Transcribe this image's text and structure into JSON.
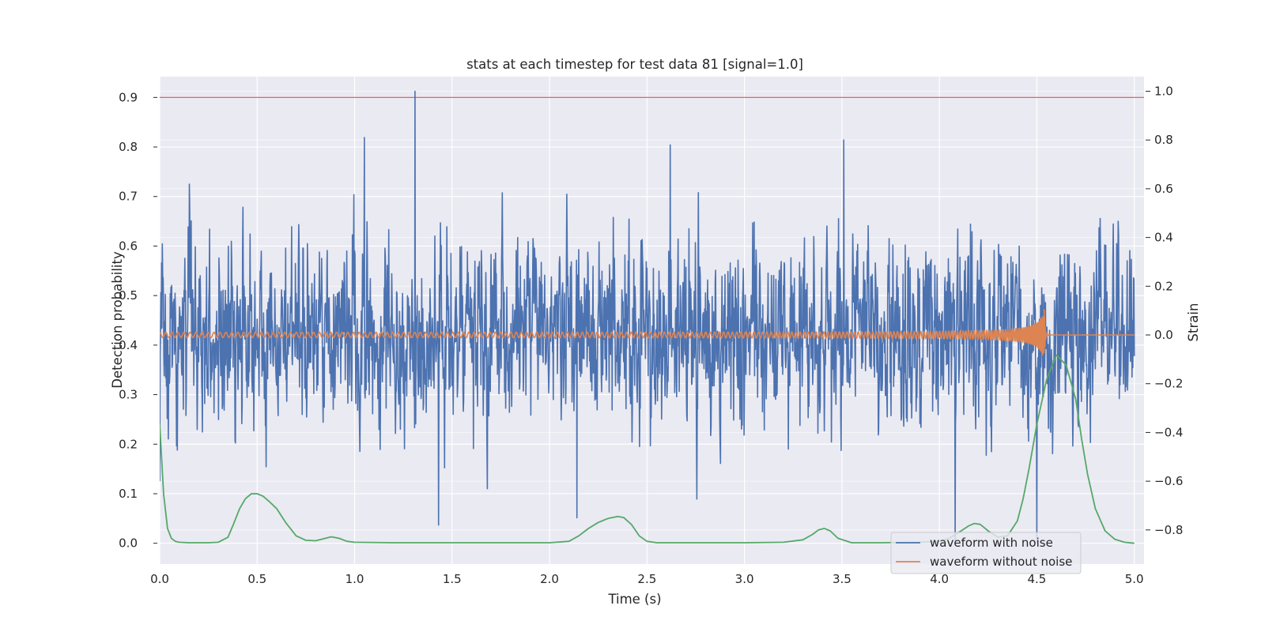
{
  "chart_data": {
    "type": "line",
    "title": "stats at each timestep for test data 81 [signal=1.0]",
    "xlabel": "Time (s)",
    "ylabel_left": "Detection probability",
    "ylabel_right": "Strain",
    "xlim": [
      0.0,
      5.05
    ],
    "ylim_left": [
      -0.042,
      0.942
    ],
    "ylim_right": [
      -0.94,
      1.06
    ],
    "grid": true,
    "x_ticks": [
      "0.0",
      "0.5",
      "1.0",
      "1.5",
      "2.0",
      "2.5",
      "3.0",
      "3.5",
      "4.0",
      "4.5",
      "5.0"
    ],
    "y_ticks_left": [
      "0.0",
      "0.1",
      "0.2",
      "0.3",
      "0.4",
      "0.5",
      "0.6",
      "0.7",
      "0.8",
      "0.9"
    ],
    "y_ticks_right": [
      "−0.8",
      "−0.6",
      "−0.4",
      "−0.2",
      "0.0",
      "0.2",
      "0.4",
      "0.6",
      "0.8",
      "1.0"
    ],
    "threshold": {
      "axis": "left",
      "y": 0.9,
      "color": "#d62728"
    },
    "series": [
      {
        "name": "waveform with noise",
        "axis": "right",
        "color": "#4c72b0",
        "kind": "noise",
        "x_range": [
          0.0,
          5.0
        ],
        "y_range_approx": [
          -0.85,
          1.0
        ],
        "spikes": [
          [
            0.0,
            -0.6
          ],
          [
            1.31,
            1.0
          ],
          [
            1.05,
            0.81
          ],
          [
            3.51,
            0.8
          ],
          [
            4.08,
            -0.85
          ],
          [
            4.5,
            -0.85
          ],
          [
            2.62,
            0.78
          ],
          [
            2.14,
            -0.75
          ],
          [
            1.43,
            -0.78
          ]
        ]
      },
      {
        "name": "waveform without noise",
        "axis": "right",
        "color": "#dd8452",
        "kind": "chirp",
        "x_range": [
          0.0,
          5.0
        ],
        "merger_time": 4.54,
        "amplitude_start": 0.01,
        "amplitude_peak": 0.12
      },
      {
        "axis": "left",
        "color": "#55a868",
        "kind": "probability",
        "x": [
          0.0,
          0.02,
          0.04,
          0.06,
          0.08,
          0.1,
          0.15,
          0.2,
          0.25,
          0.3,
          0.35,
          0.38,
          0.41,
          0.44,
          0.47,
          0.5,
          0.53,
          0.56,
          0.6,
          0.65,
          0.7,
          0.75,
          0.8,
          0.85,
          0.88,
          0.92,
          0.96,
          1.0,
          1.2,
          1.5,
          1.8,
          2.0,
          2.1,
          2.15,
          2.2,
          2.25,
          2.3,
          2.35,
          2.38,
          2.42,
          2.46,
          2.5,
          2.55,
          2.7,
          3.0,
          3.2,
          3.3,
          3.35,
          3.38,
          3.41,
          3.44,
          3.48,
          3.55,
          3.7,
          3.9,
          4.0,
          4.05,
          4.1,
          4.15,
          4.18,
          4.21,
          4.25,
          4.3,
          4.35,
          4.4,
          4.43,
          4.46,
          4.5,
          4.55,
          4.6,
          4.65,
          4.7,
          4.73,
          4.76,
          4.8,
          4.85,
          4.9,
          4.95,
          5.0
        ],
        "y": [
          0.24,
          0.1,
          0.03,
          0.01,
          0.004,
          0.002,
          0.001,
          0.001,
          0.001,
          0.002,
          0.012,
          0.04,
          0.07,
          0.09,
          0.1,
          0.1,
          0.095,
          0.085,
          0.07,
          0.04,
          0.015,
          0.006,
          0.005,
          0.01,
          0.013,
          0.01,
          0.004,
          0.002,
          0.001,
          0.001,
          0.001,
          0.001,
          0.004,
          0.015,
          0.03,
          0.042,
          0.05,
          0.054,
          0.052,
          0.038,
          0.015,
          0.004,
          0.001,
          0.001,
          0.001,
          0.002,
          0.007,
          0.018,
          0.027,
          0.03,
          0.025,
          0.01,
          0.001,
          0.001,
          0.002,
          0.004,
          0.01,
          0.022,
          0.035,
          0.04,
          0.038,
          0.025,
          0.012,
          0.015,
          0.045,
          0.09,
          0.15,
          0.24,
          0.33,
          0.38,
          0.36,
          0.29,
          0.21,
          0.14,
          0.07,
          0.025,
          0.008,
          0.002,
          0.0
        ]
      }
    ],
    "legend": {
      "position": "lower right",
      "entries": [
        "waveform with noise",
        "waveform without noise"
      ]
    }
  }
}
